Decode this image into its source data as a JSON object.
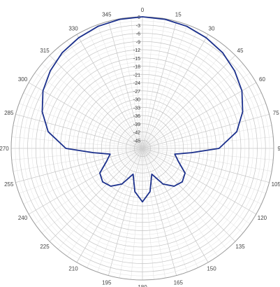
{
  "chart_data": {
    "type": "polar-line",
    "title": "",
    "angle_unit": "degrees",
    "radial_unit": "dB",
    "angle_direction": "clockwise",
    "zero_angle_at": "top",
    "angle_ticks": [
      "0",
      "15",
      "30",
      "45",
      "60",
      "75",
      "90",
      "105",
      "120",
      "135",
      "150",
      "165",
      "180",
      "195",
      "210",
      "225",
      "240",
      "255",
      "270",
      "285",
      "300",
      "315",
      "330",
      "345"
    ],
    "angle_tick_values": [
      0,
      15,
      30,
      45,
      60,
      75,
      90,
      105,
      120,
      135,
      150,
      165,
      180,
      195,
      210,
      225,
      240,
      255,
      270,
      285,
      300,
      315,
      330,
      345
    ],
    "radial_ticks": [
      "0",
      "-3",
      "-6",
      "-9",
      "-12",
      "-15",
      "-18",
      "-21",
      "-24",
      "-27",
      "-30",
      "-33",
      "-36",
      "-39",
      "-42",
      "-45"
    ],
    "radial_tick_values": [
      0,
      -3,
      -6,
      -9,
      -12,
      -15,
      -18,
      -21,
      -24,
      -27,
      -30,
      -33,
      -36,
      -39,
      -42,
      -45
    ],
    "rlim": [
      -48,
      0
    ],
    "grid": true,
    "series": [
      {
        "color": "#1a2f8c",
        "points": [
          [
            0,
            0
          ],
          [
            10,
            -0.2
          ],
          [
            20,
            -0.6
          ],
          [
            30,
            -1.4
          ],
          [
            40,
            -2.4
          ],
          [
            50,
            -4.0
          ],
          [
            60,
            -6.0
          ],
          [
            70,
            -9.0
          ],
          [
            80,
            -13.0
          ],
          [
            90,
            -20.0
          ],
          [
            95,
            -30.0
          ],
          [
            100,
            -36.0
          ],
          [
            110,
            -34.0
          ],
          [
            120,
            -30.0
          ],
          [
            130,
            -29.0
          ],
          [
            140,
            -30.0
          ],
          [
            150,
            -33.0
          ],
          [
            160,
            -38.0
          ],
          [
            170,
            -32.0
          ],
          [
            180,
            -28.5
          ],
          [
            190,
            -32.0
          ],
          [
            200,
            -38.0
          ],
          [
            210,
            -33.0
          ],
          [
            220,
            -30.0
          ],
          [
            230,
            -29.0
          ],
          [
            240,
            -30.0
          ],
          [
            250,
            -34.0
          ],
          [
            260,
            -36.0
          ],
          [
            265,
            -30.0
          ],
          [
            270,
            -20.0
          ],
          [
            280,
            -13.0
          ],
          [
            290,
            -9.0
          ],
          [
            300,
            -6.0
          ],
          [
            310,
            -4.0
          ],
          [
            320,
            -2.4
          ],
          [
            330,
            -1.4
          ],
          [
            340,
            -0.6
          ],
          [
            350,
            -0.2
          ],
          [
            360,
            0
          ]
        ]
      }
    ]
  }
}
